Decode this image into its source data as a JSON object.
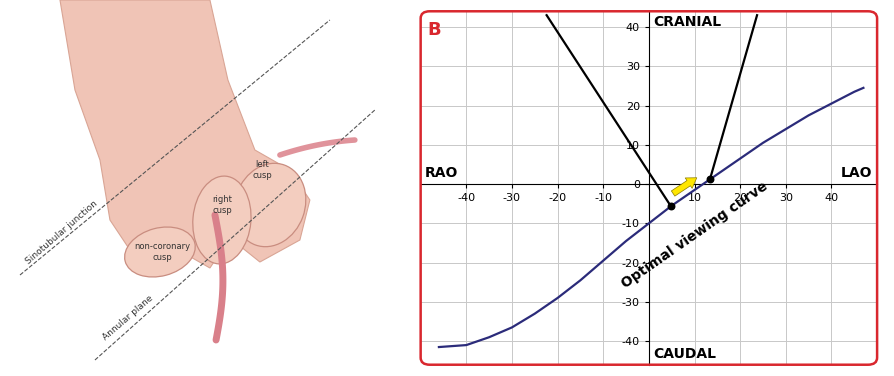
{
  "illustration": {
    "labels": {
      "sinotubular": "Sinotubular junction",
      "annular": "Annular plane",
      "left_cusp": "left\ncusp",
      "right_cusp": "right\ncusp",
      "noncoronary_cusp": "non-coronary\ncusp"
    }
  },
  "chart_data": {
    "type": "line",
    "panel_label": "B",
    "panel_label_color": "#d9272e",
    "top_label": "CRANIAL",
    "bottom_label": "CAUDAL",
    "left_label": "RAO",
    "right_label": "LAO",
    "curve_label": "Optimal viewing curve",
    "x": [
      -46,
      -40,
      -35,
      -30,
      -25,
      -20,
      -15,
      -10,
      -5,
      0,
      5,
      10,
      15,
      20,
      25,
      30,
      35,
      40,
      45,
      47
    ],
    "values": [
      -41.5,
      -41,
      -39,
      -36.5,
      -33,
      -29,
      -24.5,
      -19.5,
      -14.5,
      -10,
      -5.5,
      -1.5,
      2.5,
      6.5,
      10.5,
      14,
      17.5,
      20.5,
      23.5,
      24.5
    ],
    "color": "#2b2b7a",
    "lines": [
      {
        "x": [
          4.8,
          -22.4
        ],
        "y": [
          -5.6,
          43
        ],
        "color": "#000000"
      },
      {
        "x": [
          13.4,
          23.7
        ],
        "y": [
          1.3,
          43
        ],
        "color": "#000000"
      }
    ],
    "points": {
      "x": [
        4.8,
        13.4
      ],
      "y": [
        -5.6,
        1.3
      ],
      "color": "#000000"
    },
    "arrow": {
      "x": [
        4.8,
        11
      ],
      "y": [
        -2.8,
        2
      ],
      "color": "#ffe600"
    },
    "xlim": [
      -50,
      50
    ],
    "ylim": [
      -46,
      44
    ],
    "xticks": [
      -40,
      -30,
      -20,
      -10,
      10,
      20,
      30,
      40
    ],
    "yticks": [
      -40,
      -30,
      -20,
      -10,
      0,
      10,
      20,
      30,
      40
    ],
    "grid": true
  }
}
